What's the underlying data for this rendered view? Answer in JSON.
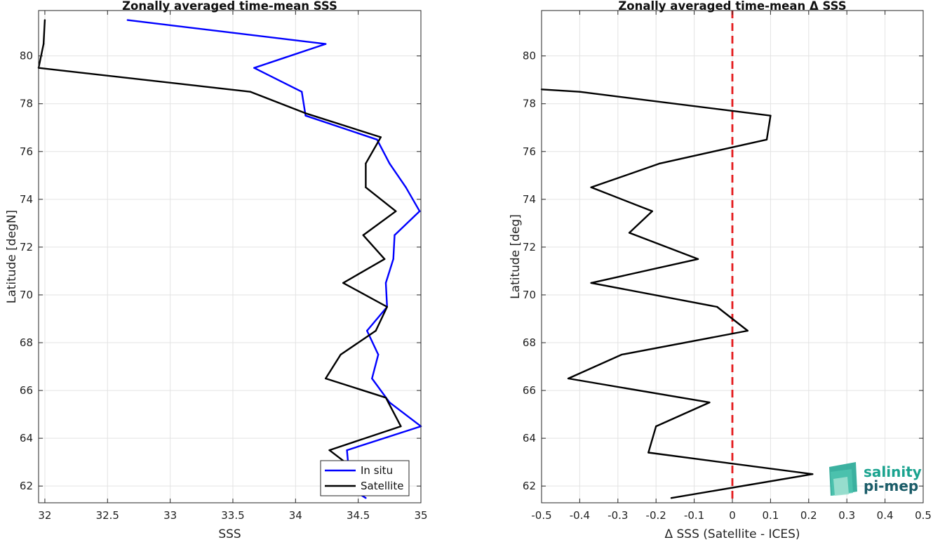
{
  "chart_data": [
    {
      "type": "line",
      "title": "Zonally averaged time-mean SSS",
      "xlabel": "SSS",
      "ylabel": "Latitude [degN]",
      "xlim": [
        31.95,
        35.0
      ],
      "ylim": [
        61.3,
        81.9
      ],
      "xticks": [
        32,
        32.5,
        33,
        33.5,
        34,
        34.5,
        35
      ],
      "xtick_labels": [
        "32",
        "32.5",
        "33",
        "33.5",
        "34",
        "34.5",
        "35"
      ],
      "yticks": [
        62,
        64,
        66,
        68,
        70,
        72,
        74,
        76,
        78,
        80
      ],
      "ytick_labels": [
        "62",
        "64",
        "66",
        "68",
        "70",
        "72",
        "74",
        "76",
        "78",
        "80"
      ],
      "grid": true,
      "legend_position": "bottom-right",
      "series": [
        {
          "name": "In situ",
          "color": "#0000ff",
          "x": [
            34.56,
            34.53,
            34.42,
            34.41,
            35.0,
            34.75,
            34.61,
            34.66,
            34.57,
            34.73,
            34.72,
            34.78,
            34.79,
            34.99,
            34.88,
            34.75,
            34.65,
            34.08,
            34.05,
            33.67,
            34.24,
            32.66
          ],
          "y": [
            61.5,
            61.6,
            62.9,
            63.5,
            64.5,
            65.5,
            66.5,
            67.5,
            68.5,
            69.5,
            70.5,
            71.5,
            72.5,
            73.5,
            74.5,
            75.5,
            76.5,
            77.5,
            78.5,
            79.5,
            80.5,
            81.5
          ]
        },
        {
          "name": "Satellite",
          "color": "#000000",
          "x": [
            34.42,
            34.27,
            34.84,
            34.72,
            34.24,
            34.36,
            34.64,
            34.73,
            34.38,
            34.71,
            34.54,
            34.8,
            34.56,
            34.56,
            34.68,
            34.08,
            33.64,
            31.95,
            31.99,
            32.0
          ],
          "y": [
            62.9,
            63.5,
            64.5,
            65.7,
            66.5,
            67.5,
            68.5,
            69.5,
            70.5,
            71.5,
            72.5,
            73.5,
            74.5,
            75.5,
            76.6,
            77.6,
            78.5,
            79.5,
            80.5,
            81.5
          ]
        }
      ]
    },
    {
      "type": "line",
      "title": "Zonally averaged time-mean Δ SSS",
      "xlabel": "Δ SSS (Satellite - ICES)",
      "ylabel": "Latitude [deg]",
      "xlim": [
        -0.5,
        0.5
      ],
      "ylim": [
        61.3,
        81.9
      ],
      "xticks": [
        -0.5,
        -0.4,
        -0.3,
        -0.2,
        -0.1,
        0,
        0.1,
        0.2,
        0.3,
        0.4,
        0.5
      ],
      "xtick_labels": [
        "-0.5",
        "-0.4",
        "-0.3",
        "-0.2",
        "-0.1",
        "0",
        "0.1",
        "0.2",
        "0.3",
        "0.4",
        "0.5"
      ],
      "yticks": [
        62,
        64,
        66,
        68,
        70,
        72,
        74,
        76,
        78,
        80
      ],
      "ytick_labels": [
        "62",
        "64",
        "66",
        "68",
        "70",
        "72",
        "74",
        "76",
        "78",
        "80"
      ],
      "grid": true,
      "reference_line": {
        "x": 0,
        "color": "#e41a1c",
        "style": "dashed"
      },
      "series": [
        {
          "color": "#000000",
          "x": [
            -0.16,
            0.21,
            -0.22,
            -0.2,
            -0.06,
            -0.43,
            -0.29,
            0.04,
            -0.04,
            -0.37,
            -0.09,
            -0.27,
            -0.21,
            -0.37,
            -0.19,
            0.09,
            0.1,
            -0.4,
            -0.5
          ],
          "y": [
            61.5,
            62.5,
            63.4,
            64.5,
            65.5,
            66.5,
            67.5,
            68.5,
            69.5,
            70.5,
            71.5,
            72.6,
            73.5,
            74.5,
            75.5,
            76.5,
            77.5,
            78.5,
            78.6
          ]
        }
      ]
    }
  ],
  "logo": {
    "line1": "salinity",
    "line2": "pi-mep",
    "color1": "#1aa38f",
    "color2": "#1a5c68"
  }
}
